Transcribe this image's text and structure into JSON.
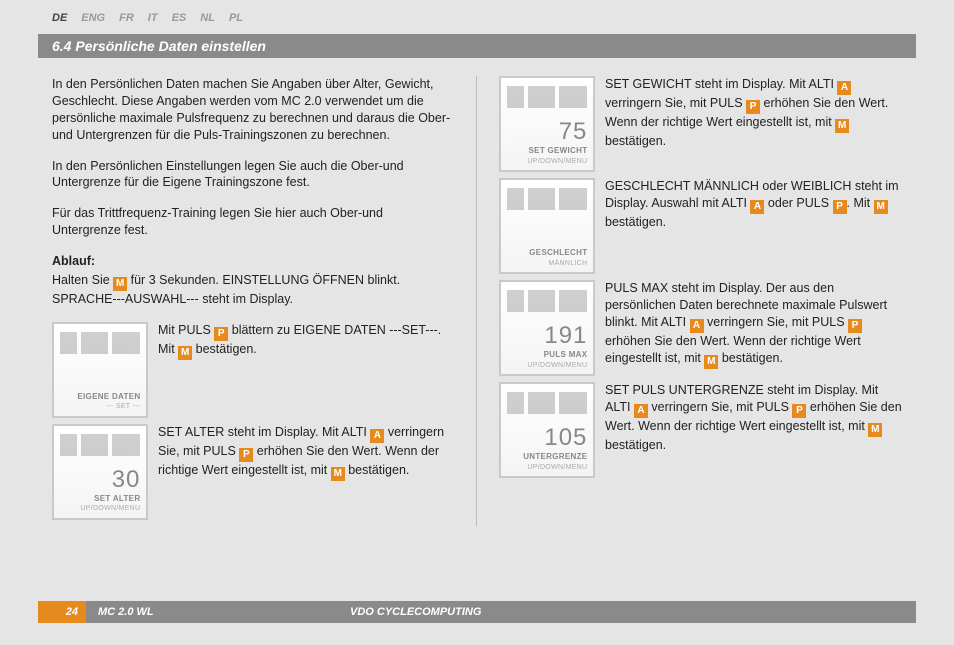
{
  "langs": [
    "DE",
    "ENG",
    "FR",
    "IT",
    "ES",
    "NL",
    "PL"
  ],
  "activeLang": "DE",
  "title": "6.4 Persönliche Daten einstellen",
  "intro": [
    "In den Persönlichen Daten machen Sie Angaben über Alter, Gewicht, Geschlecht. Diese Angaben werden vom MC 2.0 verwendet um die persönliche maximale Pulsfrequenz zu berechnen und daraus die Ober-und Untergrenzen für die Puls-Trainingszonen zu berechnen.",
    "In den Persönlichen Einstellungen legen Sie auch die Ober-und Untergrenze für die Eigene Trainingszone fest.",
    "Für das Trittfrequenz-Training legen Sie hier auch Ober-und Untergrenze fest."
  ],
  "ablaufHead": "Ablauf:",
  "ablaufTxt": "Halten Sie {M} für 3 Sekunden. EINSTELLUNG ÖFFNEN blinkt. SPRACHE---AUSWAHL--- steht im Display.",
  "leftSteps": [
    {
      "thumb": {
        "num": "",
        "l1": "EIGENE DATEN",
        "l2": "--- SET ---"
      },
      "txt": "Mit PULS {P} blättern zu EIGENE DATEN ---SET---. Mit {M} bestätigen."
    },
    {
      "thumb": {
        "num": "30",
        "l1": "SET ALTER",
        "l2": "UP/DOWN/MENU"
      },
      "txt": "SET ALTER steht im Display. Mit ALTI {A} verringern Sie, mit PULS {P} erhöhen Sie den Wert. Wenn der richtige Wert eingestellt ist, mit {M} bestätigen."
    }
  ],
  "rightSteps": [
    {
      "thumb": {
        "num": "75",
        "l1": "SET GEWICHT",
        "l2": "UP/DOWN/MENU"
      },
      "txt": "SET GEWICHT steht im Display. Mit ALTI {A} verringern Sie, mit PULS {P} erhöhen Sie den Wert. Wenn der richtige Wert eingestellt ist, mit {M} bestätigen."
    },
    {
      "thumb": {
        "num": "",
        "l1": "GESCHLECHT",
        "l2": "MÄNNLICH"
      },
      "txt": "GESCHLECHT MÄNNLICH oder WEIBLICH steht im Display. Auswahl mit ALTI {A} oder PULS {P}. Mit {M} bestätigen."
    },
    {
      "thumb": {
        "num": "191",
        "l1": "PULS MAX",
        "l2": "UP/DOWN/MENU"
      },
      "txt": "PULS MAX steht im Display. Der aus den persönlichen Daten berechnete maximale Pulswert blinkt. Mit ALTI {A} verringern Sie, mit PULS {P} erhöhen Sie den Wert. Wenn der richtige Wert eingestellt ist, mit {M} bestätigen."
    },
    {
      "thumb": {
        "num": "105",
        "l1": "UNTERGRENZE",
        "l2": "UP/DOWN/MENU"
      },
      "txt": "SET PULS UNTERGRENZE steht im Display. Mit ALTI {A} verringern Sie, mit PULS {P} erhöhen Sie den Wert. Wenn der richtige Wert eingestellt ist, mit {M} bestätigen."
    }
  ],
  "footer": {
    "page": "24",
    "model": "MC 2.0 WL",
    "brand": "VDO CYCLECOMPUTING"
  }
}
